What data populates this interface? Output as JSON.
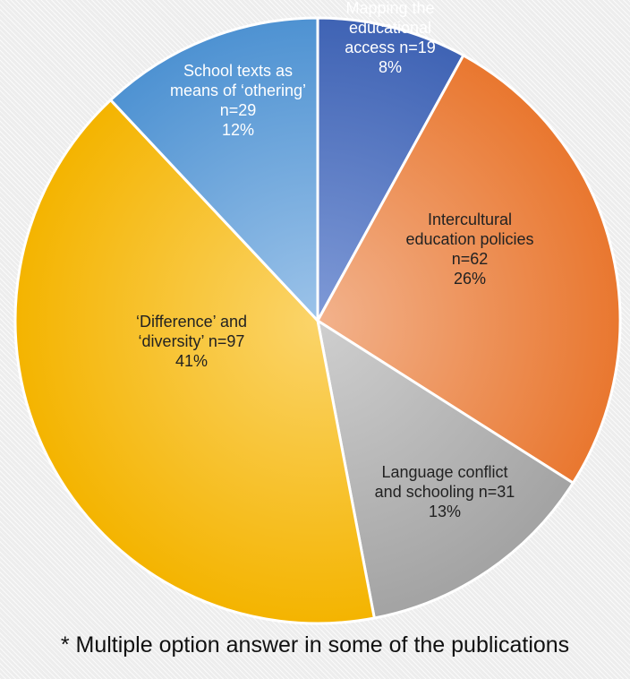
{
  "chart_data": {
    "type": "pie",
    "start_angle_deg": 0,
    "direction": "clockwise",
    "slices": [
      {
        "key": "mapping",
        "label_lines": [
          "Mapping the",
          "educational",
          "access n=19",
          "8%"
        ],
        "n": 19,
        "percent": 8,
        "color_outer": "#3f63b4",
        "color_inner": "#7f9ad7",
        "text_color": "#ffffff"
      },
      {
        "key": "intercultural",
        "label_lines": [
          "Intercultural",
          "education policies",
          "n=62",
          "26%"
        ],
        "n": 62,
        "percent": 26,
        "color_outer": "#e9772f",
        "color_inner": "#f2b28c",
        "text_color": "#222222"
      },
      {
        "key": "language",
        "label_lines": [
          "Language conflict",
          "and schooling n=31",
          "13%"
        ],
        "n": 31,
        "percent": 13,
        "color_outer": "#a3a3a3",
        "color_inner": "#cfcfcf",
        "text_color": "#222222"
      },
      {
        "key": "difference",
        "label_lines": [
          "‘Difference’ and",
          "‘diversity’ n=97",
          "41%"
        ],
        "n": 97,
        "percent": 41,
        "color_outer": "#f4b400",
        "color_inner": "#fbd46a",
        "text_color": "#222222"
      },
      {
        "key": "school-texts",
        "label_lines": [
          "School texts as",
          "means of ‘othering’",
          "n=29",
          "12%"
        ],
        "n": 29,
        "percent": 12,
        "color_outer": "#4e92d2",
        "color_inner": "#9cc3e9",
        "text_color": "#ffffff"
      }
    ]
  },
  "footnote": "* Multiple option answer in some of the publications"
}
